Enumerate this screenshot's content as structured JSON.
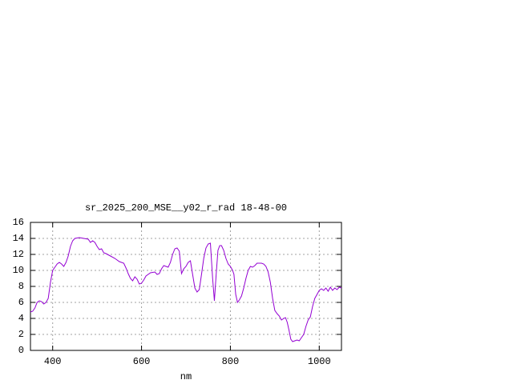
{
  "chart_data": {
    "type": "line",
    "title": "sr_2025_200_MSE__y02_r_rad 18-48-00",
    "x_label": "nm",
    "color": "#9400d3",
    "grid": true,
    "xlim": [
      350,
      1050
    ],
    "ylim": [
      0,
      16
    ],
    "xticks": [
      400,
      600,
      800,
      1000
    ],
    "yticks": [
      0,
      2,
      4,
      6,
      8,
      10,
      12,
      14,
      16
    ],
    "x": [
      350,
      355,
      360,
      365,
      370,
      375,
      380,
      385,
      390,
      395,
      400,
      405,
      410,
      415,
      420,
      425,
      430,
      435,
      440,
      445,
      450,
      460,
      470,
      480,
      485,
      490,
      495,
      500,
      505,
      510,
      515,
      520,
      530,
      540,
      550,
      560,
      565,
      570,
      575,
      580,
      585,
      590,
      595,
      600,
      605,
      610,
      620,
      630,
      635,
      640,
      645,
      650,
      655,
      660,
      665,
      670,
      675,
      680,
      685,
      690,
      695,
      700,
      705,
      710,
      715,
      720,
      725,
      730,
      735,
      740,
      745,
      750,
      755,
      760,
      764,
      768,
      772,
      776,
      780,
      785,
      790,
      795,
      800,
      805,
      808,
      812,
      816,
      820,
      825,
      830,
      835,
      840,
      845,
      850,
      855,
      860,
      870,
      875,
      880,
      885,
      890,
      895,
      900,
      905,
      910,
      915,
      920,
      924,
      928,
      932,
      936,
      940,
      945,
      950,
      955,
      960,
      965,
      970,
      975,
      980,
      985,
      990,
      995,
      1000,
      1005,
      1010,
      1015,
      1020,
      1025,
      1030,
      1035,
      1040,
      1045,
      1050
    ],
    "values": [
      4.8,
      4.9,
      5.3,
      6.0,
      6.2,
      6.1,
      5.8,
      6.0,
      6.5,
      8.5,
      10.0,
      10.4,
      10.8,
      11.0,
      10.8,
      10.5,
      11.0,
      11.8,
      13.0,
      13.7,
      14.0,
      14.1,
      14.0,
      13.9,
      13.5,
      13.7,
      13.5,
      13.0,
      12.6,
      12.7,
      12.2,
      12.1,
      11.8,
      11.5,
      11.1,
      10.9,
      10.3,
      9.6,
      9.0,
      8.7,
      9.2,
      8.9,
      8.3,
      8.4,
      8.8,
      9.3,
      9.7,
      9.8,
      9.5,
      9.6,
      10.2,
      10.6,
      10.5,
      10.4,
      11.0,
      12.0,
      12.7,
      12.8,
      12.4,
      9.6,
      10.2,
      10.5,
      11.0,
      11.2,
      9.5,
      7.8,
      7.3,
      7.6,
      9.5,
      11.5,
      12.8,
      13.3,
      13.4,
      9.0,
      6.2,
      9.5,
      12.5,
      13.1,
      13.1,
      12.5,
      11.5,
      10.8,
      10.5,
      10.0,
      9.5,
      7.0,
      6.0,
      6.3,
      6.8,
      7.8,
      9.0,
      10.0,
      10.5,
      10.4,
      10.6,
      10.9,
      10.9,
      10.8,
      10.5,
      9.8,
      8.5,
      6.5,
      5.0,
      4.6,
      4.3,
      3.8,
      4.0,
      4.1,
      3.5,
      2.5,
      1.4,
      1.1,
      1.2,
      1.3,
      1.2,
      1.6,
      2.0,
      3.0,
      3.8,
      4.2,
      5.5,
      6.5,
      7.0,
      7.5,
      7.7,
      7.5,
      7.8,
      7.4,
      7.9,
      7.5,
      7.8,
      7.6,
      7.9,
      7.8
    ]
  }
}
